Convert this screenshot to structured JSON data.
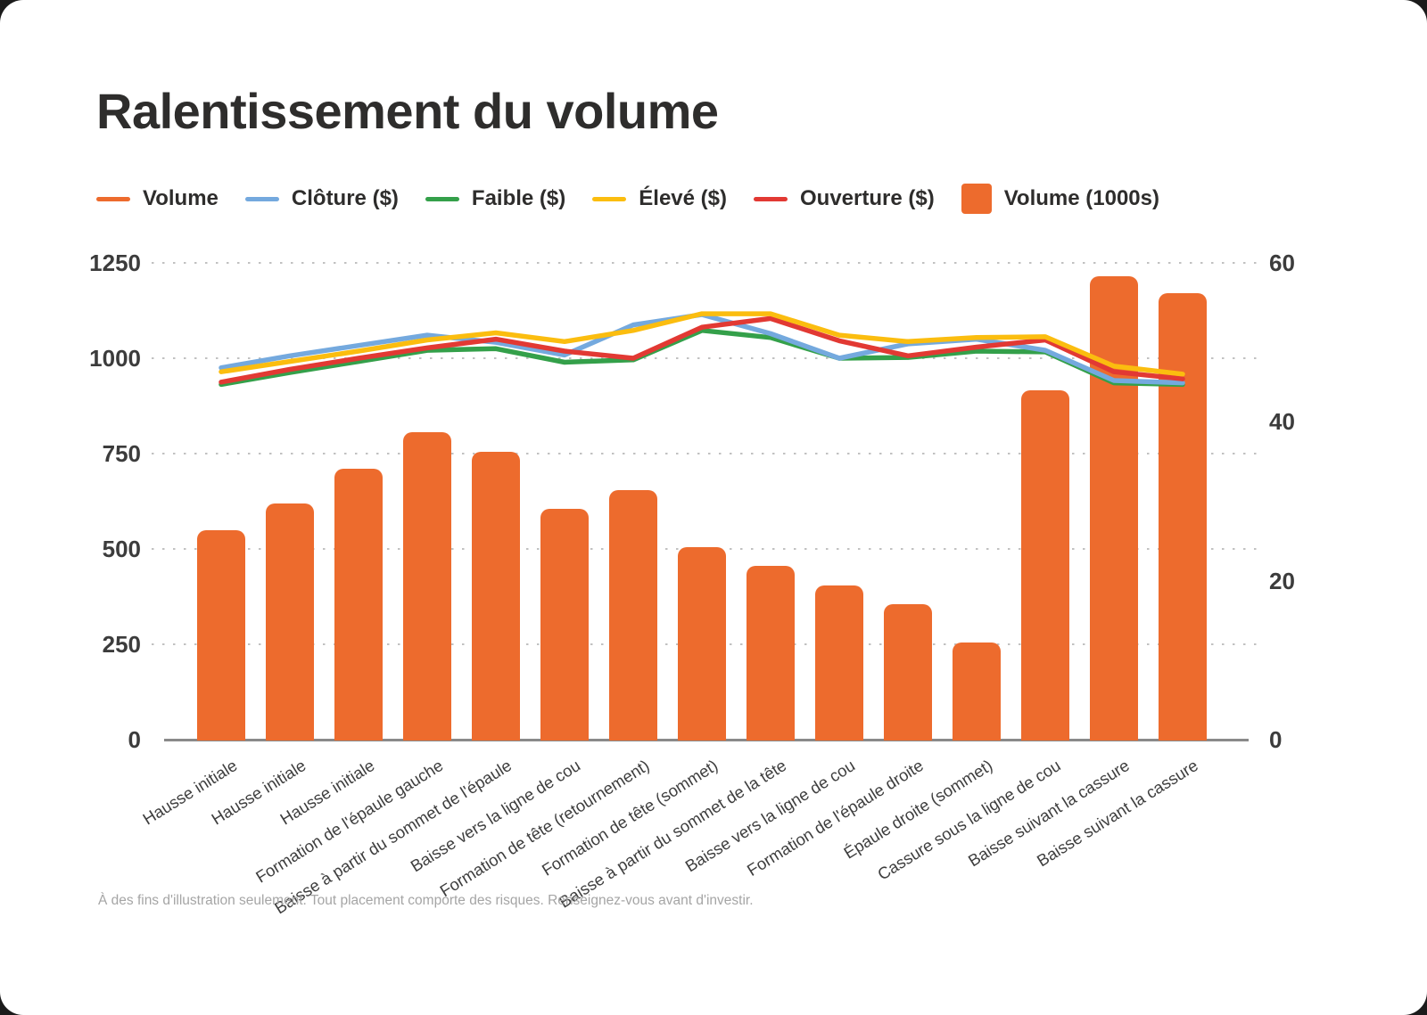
{
  "page": {
    "title": "Ralentissement du volume",
    "footnote": "À des fins d'illustration seulement. Tout placement comporte des risques. Renseignez-vous avant d'investir."
  },
  "colors": {
    "bar_orange": "#ed6b2d",
    "close_blue": "#74a9de",
    "low_green": "#34a04a",
    "high_yellow": "#fbbd0f",
    "open_red": "#e23933",
    "grid_gray": "#c1c1c1",
    "axis_gray": "#8a8a8a"
  },
  "legend": [
    {
      "label": "Volume",
      "type": "line",
      "color": "#ed6b2d"
    },
    {
      "label": "Clôture ($)",
      "type": "line",
      "color": "#74a9de"
    },
    {
      "label": "Faible ($)",
      "type": "line",
      "color": "#34a04a"
    },
    {
      "label": "Élevé ($)",
      "type": "line",
      "color": "#fbbd0f"
    },
    {
      "label": "Ouverture ($)",
      "type": "line",
      "color": "#e23933"
    },
    {
      "label": "Volume (1000s)",
      "type": "square",
      "color": "#ed6b2d"
    }
  ],
  "chart_data": {
    "type": "bar",
    "subtype": "combo bar + line, dual axis",
    "categories": [
      "Hausse initiale",
      "Hausse initiale",
      "Hausse initiale",
      "Formation de l'épaule gauche",
      "Baisse à partir du sommet de l'épaule",
      "Baisse vers la ligne de cou",
      "Formation de tête (retournement)",
      "Formation de tête (sommet)",
      "Baisse à partir du sommet de la tête",
      "Baisse vers la ligne de cou",
      "Formation de l'épaule droite",
      "Épaule droite (sommet)",
      "Cassure sous la ligne de cou",
      "Baisse suivant la cassure",
      "Baisse suivant la cassure"
    ],
    "bar_series": {
      "name": "Volume (1000s)",
      "axis": "left",
      "color": "#ed6b2d",
      "values": [
        550,
        620,
        710,
        805,
        755,
        605,
        655,
        505,
        455,
        405,
        355,
        255,
        915,
        1215,
        1170
      ]
    },
    "line_series": [
      {
        "name": "Faible ($)",
        "axis": "right",
        "color": "#34a04a",
        "values": [
          44.7,
          46.2,
          47.6,
          49.0,
          49.2,
          47.5,
          47.8,
          51.5,
          50.6,
          48.0,
          48.1,
          48.9,
          48.8,
          44.9,
          44.7
        ]
      },
      {
        "name": "Clôture ($)",
        "axis": "right",
        "color": "#74a9de",
        "values": [
          46.8,
          48.3,
          49.6,
          50.9,
          50.0,
          48.4,
          52.2,
          53.5,
          51.1,
          48.0,
          49.8,
          50.4,
          49.0,
          45.2,
          44.9
        ]
      },
      {
        "name": "Ouverture ($)",
        "axis": "right",
        "color": "#e23933",
        "values": [
          45.0,
          46.6,
          48.0,
          49.3,
          50.4,
          48.9,
          48.0,
          51.9,
          53.0,
          50.2,
          48.3,
          49.4,
          50.3,
          46.3,
          45.4
        ]
      },
      {
        "name": "Élevé ($)",
        "axis": "right",
        "color": "#fbbd0f",
        "values": [
          46.3,
          47.6,
          48.9,
          50.3,
          51.2,
          50.1,
          51.5,
          53.6,
          53.6,
          50.9,
          50.1,
          50.6,
          50.7,
          47.0,
          46.0
        ]
      }
    ],
    "left_axis": {
      "ticks": [
        0,
        250,
        500,
        750,
        1000,
        1250
      ],
      "range": [
        0,
        1250
      ],
      "label": ""
    },
    "right_axis": {
      "ticks": [
        0,
        20,
        40,
        60
      ],
      "range": [
        0,
        60
      ],
      "label": ""
    },
    "grid": "horizontal dotted lines at left-axis ticks, solid baseline",
    "legend_position": "top-left, horizontal"
  }
}
